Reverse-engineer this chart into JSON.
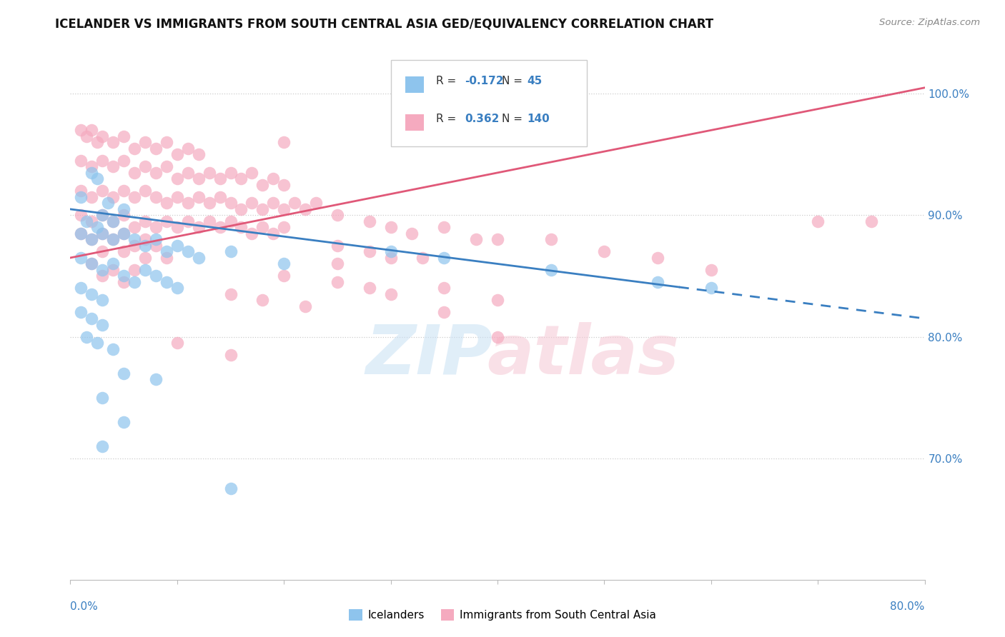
{
  "title": "ICELANDER VS IMMIGRANTS FROM SOUTH CENTRAL ASIA GED/EQUIVALENCY CORRELATION CHART",
  "source": "Source: ZipAtlas.com",
  "ylabel_ticks": [
    70.0,
    80.0,
    90.0,
    100.0
  ],
  "xmin": 0.0,
  "xmax": 80.0,
  "ymin": 60.0,
  "ymax": 103.0,
  "legend_blue_r": "-0.172",
  "legend_blue_n": "45",
  "legend_pink_r": "0.362",
  "legend_pink_n": "140",
  "blue_color": "#8EC4ED",
  "pink_color": "#F5AABF",
  "blue_line_color": "#3A7FC1",
  "pink_line_color": "#E05878",
  "blue_scatter": [
    [
      1.0,
      91.5
    ],
    [
      2.0,
      93.5
    ],
    [
      2.5,
      93.0
    ],
    [
      1.5,
      89.5
    ],
    [
      2.5,
      89.0
    ],
    [
      3.0,
      90.0
    ],
    [
      4.0,
      89.5
    ],
    [
      5.0,
      90.5
    ],
    [
      3.5,
      91.0
    ],
    [
      1.0,
      88.5
    ],
    [
      2.0,
      88.0
    ],
    [
      3.0,
      88.5
    ],
    [
      4.0,
      88.0
    ],
    [
      5.0,
      88.5
    ],
    [
      6.0,
      88.0
    ],
    [
      7.0,
      87.5
    ],
    [
      8.0,
      88.0
    ],
    [
      9.0,
      87.0
    ],
    [
      10.0,
      87.5
    ],
    [
      11.0,
      87.0
    ],
    [
      12.0,
      86.5
    ],
    [
      1.0,
      86.5
    ],
    [
      2.0,
      86.0
    ],
    [
      3.0,
      85.5
    ],
    [
      4.0,
      86.0
    ],
    [
      5.0,
      85.0
    ],
    [
      6.0,
      84.5
    ],
    [
      1.0,
      84.0
    ],
    [
      2.0,
      83.5
    ],
    [
      3.0,
      83.0
    ],
    [
      1.0,
      82.0
    ],
    [
      2.0,
      81.5
    ],
    [
      3.0,
      81.0
    ],
    [
      1.5,
      80.0
    ],
    [
      2.5,
      79.5
    ],
    [
      4.0,
      79.0
    ],
    [
      7.0,
      85.5
    ],
    [
      8.0,
      85.0
    ],
    [
      9.0,
      84.5
    ],
    [
      10.0,
      84.0
    ],
    [
      15.0,
      87.0
    ],
    [
      20.0,
      86.0
    ],
    [
      30.0,
      87.0
    ],
    [
      35.0,
      86.5
    ],
    [
      45.0,
      85.5
    ],
    [
      55.0,
      84.5
    ],
    [
      60.0,
      84.0
    ]
  ],
  "blue_scatter_isolated": [
    [
      5.0,
      77.0
    ],
    [
      8.0,
      76.5
    ],
    [
      3.0,
      75.0
    ],
    [
      5.0,
      73.0
    ],
    [
      3.0,
      71.0
    ],
    [
      15.0,
      67.5
    ]
  ],
  "pink_scatter": [
    [
      1.0,
      97.0
    ],
    [
      1.5,
      96.5
    ],
    [
      2.0,
      97.0
    ],
    [
      2.5,
      96.0
    ],
    [
      3.0,
      96.5
    ],
    [
      4.0,
      96.0
    ],
    [
      5.0,
      96.5
    ],
    [
      6.0,
      95.5
    ],
    [
      7.0,
      96.0
    ],
    [
      8.0,
      95.5
    ],
    [
      9.0,
      96.0
    ],
    [
      10.0,
      95.0
    ],
    [
      11.0,
      95.5
    ],
    [
      12.0,
      95.0
    ],
    [
      1.0,
      94.5
    ],
    [
      2.0,
      94.0
    ],
    [
      3.0,
      94.5
    ],
    [
      4.0,
      94.0
    ],
    [
      5.0,
      94.5
    ],
    [
      6.0,
      93.5
    ],
    [
      7.0,
      94.0
    ],
    [
      8.0,
      93.5
    ],
    [
      9.0,
      94.0
    ],
    [
      10.0,
      93.0
    ],
    [
      11.0,
      93.5
    ],
    [
      12.0,
      93.0
    ],
    [
      13.0,
      93.5
    ],
    [
      14.0,
      93.0
    ],
    [
      15.0,
      93.5
    ],
    [
      16.0,
      93.0
    ],
    [
      17.0,
      93.5
    ],
    [
      18.0,
      92.5
    ],
    [
      19.0,
      93.0
    ],
    [
      20.0,
      92.5
    ],
    [
      1.0,
      92.0
    ],
    [
      2.0,
      91.5
    ],
    [
      3.0,
      92.0
    ],
    [
      4.0,
      91.5
    ],
    [
      5.0,
      92.0
    ],
    [
      6.0,
      91.5
    ],
    [
      7.0,
      92.0
    ],
    [
      8.0,
      91.5
    ],
    [
      9.0,
      91.0
    ],
    [
      10.0,
      91.5
    ],
    [
      11.0,
      91.0
    ],
    [
      12.0,
      91.5
    ],
    [
      13.0,
      91.0
    ],
    [
      14.0,
      91.5
    ],
    [
      15.0,
      91.0
    ],
    [
      16.0,
      90.5
    ],
    [
      17.0,
      91.0
    ],
    [
      18.0,
      90.5
    ],
    [
      19.0,
      91.0
    ],
    [
      20.0,
      90.5
    ],
    [
      21.0,
      91.0
    ],
    [
      22.0,
      90.5
    ],
    [
      23.0,
      91.0
    ],
    [
      1.0,
      90.0
    ],
    [
      2.0,
      89.5
    ],
    [
      3.0,
      90.0
    ],
    [
      4.0,
      89.5
    ],
    [
      5.0,
      90.0
    ],
    [
      6.0,
      89.0
    ],
    [
      7.0,
      89.5
    ],
    [
      8.0,
      89.0
    ],
    [
      9.0,
      89.5
    ],
    [
      10.0,
      89.0
    ],
    [
      11.0,
      89.5
    ],
    [
      12.0,
      89.0
    ],
    [
      13.0,
      89.5
    ],
    [
      14.0,
      89.0
    ],
    [
      15.0,
      89.5
    ],
    [
      16.0,
      89.0
    ],
    [
      17.0,
      88.5
    ],
    [
      18.0,
      89.0
    ],
    [
      19.0,
      88.5
    ],
    [
      20.0,
      89.0
    ],
    [
      1.0,
      88.5
    ],
    [
      2.0,
      88.0
    ],
    [
      3.0,
      88.5
    ],
    [
      4.0,
      88.0
    ],
    [
      5.0,
      88.5
    ],
    [
      6.0,
      87.5
    ],
    [
      7.0,
      88.0
    ],
    [
      8.0,
      87.5
    ],
    [
      3.0,
      87.0
    ],
    [
      5.0,
      87.0
    ],
    [
      7.0,
      86.5
    ],
    [
      9.0,
      86.5
    ],
    [
      2.0,
      86.0
    ],
    [
      4.0,
      85.5
    ],
    [
      6.0,
      85.5
    ],
    [
      3.0,
      85.0
    ],
    [
      5.0,
      84.5
    ],
    [
      25.0,
      90.0
    ],
    [
      28.0,
      89.5
    ],
    [
      30.0,
      89.0
    ],
    [
      32.0,
      88.5
    ],
    [
      35.0,
      89.0
    ],
    [
      38.0,
      88.0
    ],
    [
      40.0,
      88.0
    ],
    [
      25.0,
      87.5
    ],
    [
      28.0,
      87.0
    ],
    [
      30.0,
      86.5
    ],
    [
      33.0,
      86.5
    ],
    [
      20.0,
      85.0
    ],
    [
      25.0,
      84.5
    ],
    [
      28.0,
      84.0
    ],
    [
      15.0,
      83.5
    ],
    [
      18.0,
      83.0
    ],
    [
      22.0,
      82.5
    ],
    [
      35.0,
      84.0
    ],
    [
      40.0,
      83.0
    ],
    [
      45.0,
      88.0
    ],
    [
      50.0,
      87.0
    ],
    [
      55.0,
      86.5
    ],
    [
      60.0,
      85.5
    ],
    [
      70.0,
      89.5
    ],
    [
      20.0,
      96.0
    ],
    [
      25.0,
      86.0
    ],
    [
      30.0,
      83.5
    ],
    [
      35.0,
      82.0
    ],
    [
      40.0,
      80.0
    ],
    [
      10.0,
      79.5
    ],
    [
      15.0,
      78.5
    ],
    [
      75.0,
      89.5
    ]
  ],
  "blue_trend_x": [
    0.0,
    80.0
  ],
  "blue_trend_y": [
    90.5,
    81.5
  ],
  "blue_solid_end_x": 57.0,
  "pink_trend_x": [
    0.0,
    80.0
  ],
  "pink_trend_y": [
    86.5,
    100.5
  ]
}
